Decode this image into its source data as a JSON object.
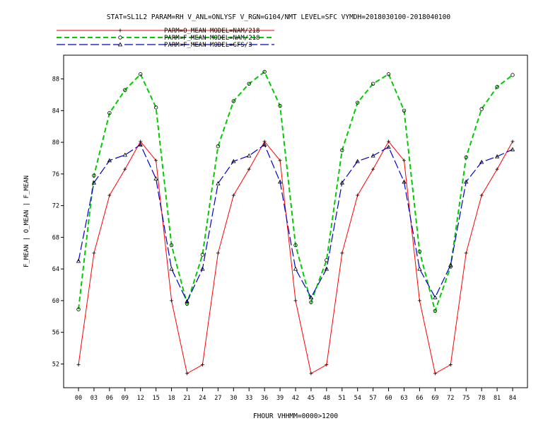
{
  "chart_data": {
    "type": "line",
    "title": "STAT=SL1L2 PARAM=RH V_ANL=ONLYSF V_RGN=G104/NMT LEVEL=SFC VYMDH=2018030100-2018040100",
    "xlabel": "FHOUR VHHMM=0000>1200",
    "ylabel": "F_MEAN | O_MEAN | F_MEAN",
    "ylim": [
      49,
      91
    ],
    "yticks": [
      52,
      56,
      60,
      64,
      68,
      72,
      76,
      80,
      84,
      88
    ],
    "x": [
      "00",
      "03",
      "06",
      "09",
      "12",
      "15",
      "18",
      "21",
      "24",
      "27",
      "30",
      "33",
      "36",
      "39",
      "42",
      "45",
      "48",
      "51",
      "54",
      "57",
      "60",
      "63",
      "66",
      "69",
      "72",
      "75",
      "78",
      "81",
      "84"
    ],
    "series": [
      {
        "name": "PARM=O_MEAN MODEL=NAM/218",
        "color": "#ff0000",
        "dash": "solid",
        "marker": "plus",
        "values": [
          51.9,
          66.0,
          73.3,
          76.6,
          80.1,
          77.7,
          60.0,
          50.8,
          51.9,
          66.0,
          73.3,
          76.6,
          80.1,
          77.7,
          60.0,
          50.8,
          51.9,
          66.0,
          73.3,
          76.6,
          80.1,
          77.7,
          60.0,
          50.8,
          51.9,
          66.0,
          73.3,
          76.6,
          80.1
        ]
      },
      {
        "name": "PARM=F_MEAN MODEL=NAM/218",
        "color": "#00cc00",
        "dash": "dashed",
        "marker": "circle",
        "values": [
          58.9,
          75.8,
          83.7,
          86.6,
          88.6,
          84.4,
          67.0,
          59.6,
          65.8,
          79.5,
          85.2,
          87.4,
          88.9,
          84.6,
          67.0,
          59.8,
          65.1,
          79.0,
          85.0,
          87.4,
          88.6,
          84.0,
          66.2,
          58.7,
          64.3,
          78.1,
          84.2,
          87.0,
          88.5
        ]
      },
      {
        "name": "PARM=F_MEAN MODEL=GFS/3",
        "color": "#0000cc",
        "dash": "longdash",
        "marker": "triangle",
        "values": [
          65.0,
          74.9,
          77.7,
          78.4,
          79.7,
          75.4,
          64.0,
          59.9,
          64.0,
          74.8,
          77.6,
          78.3,
          79.7,
          75.0,
          64.0,
          60.4,
          64.0,
          74.9,
          77.6,
          78.3,
          79.4,
          75.0,
          64.0,
          60.4,
          64.5,
          75.0,
          77.5,
          78.2,
          79.1
        ]
      }
    ],
    "legend_position": "top-left",
    "grid": false
  }
}
